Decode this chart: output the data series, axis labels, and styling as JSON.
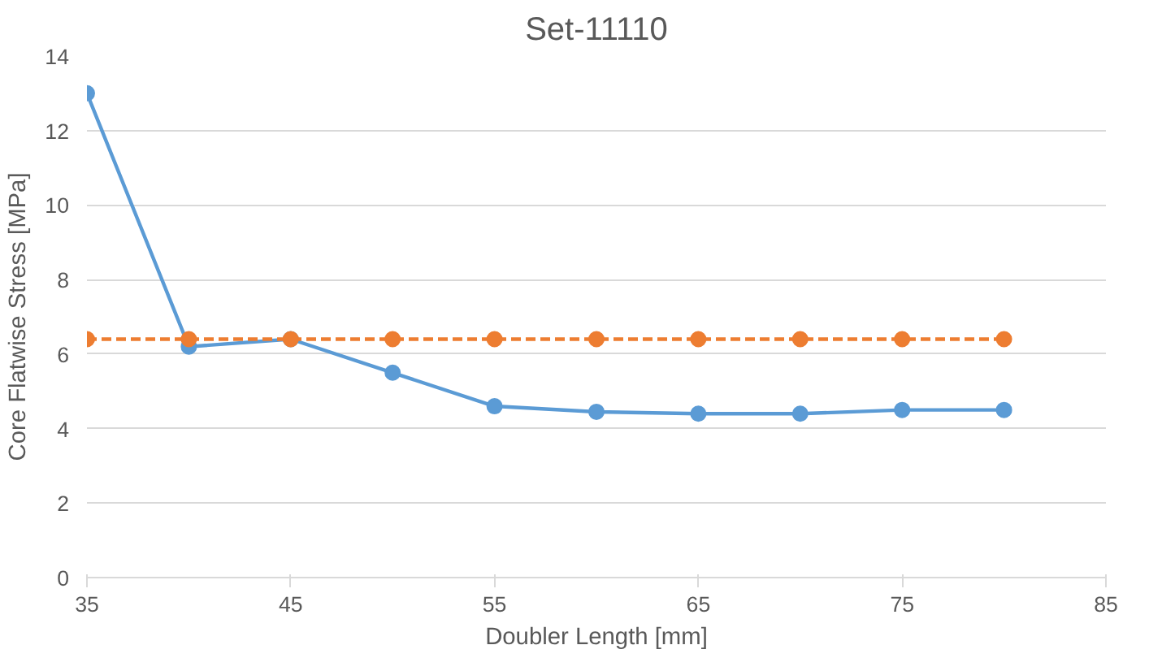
{
  "chart_data": {
    "type": "line",
    "title": "Set-11110",
    "xlabel": "Doubler Length [mm]",
    "ylabel": "Core Flatwise Stress [MPa]",
    "x": [
      35,
      40,
      45,
      50,
      55,
      60,
      65,
      70,
      75,
      80
    ],
    "series": [
      {
        "color": "#5b9bd5",
        "line_style": "solid",
        "values": [
          13.0,
          6.2,
          6.4,
          5.5,
          4.6,
          4.45,
          4.4,
          4.4,
          4.5,
          4.5
        ]
      },
      {
        "color": "#ed7d31",
        "line_style": "dashed",
        "values": [
          6.4,
          6.4,
          6.4,
          6.4,
          6.4,
          6.4,
          6.4,
          6.4,
          6.4,
          6.4
        ]
      }
    ],
    "xlim": [
      35,
      85
    ],
    "xticks": [
      35,
      45,
      55,
      65,
      75,
      85
    ],
    "ylim": [
      0,
      14
    ],
    "yticks": [
      0,
      2,
      4,
      6,
      8,
      10,
      12,
      14
    ],
    "grid": "y",
    "marker": "circle"
  }
}
